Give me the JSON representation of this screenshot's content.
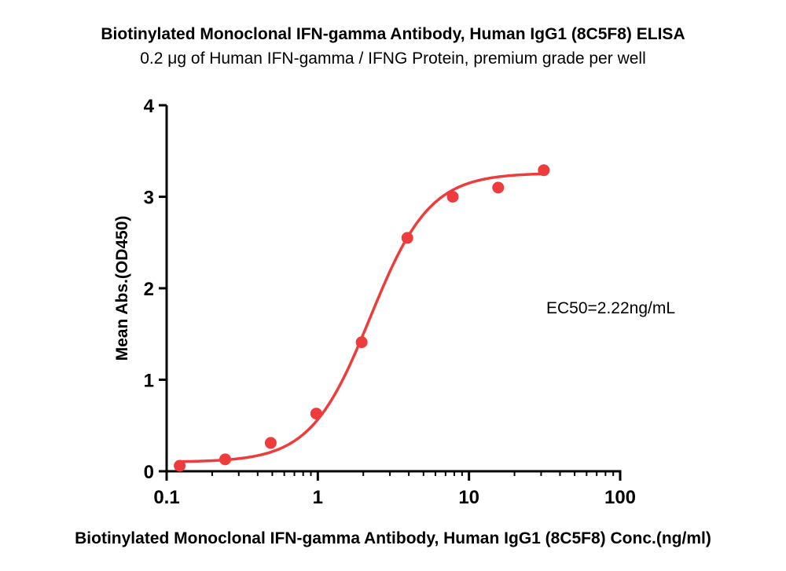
{
  "chart_data": {
    "type": "scatter",
    "title": "Biotinylated Monoclonal IFN-gamma Antibody, Human IgG1 (8C5F8) ELISA",
    "subtitle": "0.2 μg  of Human IFN-gamma / IFNG Protein, premium grade per well",
    "xlabel": "Biotinylated Monoclonal IFN-gamma Antibody, Human IgG1 (8C5F8) Conc.(ng/ml)",
    "ylabel": "Mean Abs.(OD450)",
    "x_scale": "log",
    "xlim": [
      0.1,
      100
    ],
    "ylim": [
      0,
      4
    ],
    "x_ticks": [
      "0.1",
      "1",
      "10",
      "100"
    ],
    "y_ticks": [
      "0",
      "1",
      "2",
      "3",
      "4"
    ],
    "grid": false,
    "annotation": "EC50=2.22ng/mL",
    "series": [
      {
        "color": "#ee3c3c",
        "points": [
          {
            "x": 0.122,
            "y": 0.06
          },
          {
            "x": 0.244,
            "y": 0.13
          },
          {
            "x": 0.488,
            "y": 0.31
          },
          {
            "x": 0.977,
            "y": 0.63
          },
          {
            "x": 1.95,
            "y": 1.41
          },
          {
            "x": 3.91,
            "y": 2.55
          },
          {
            "x": 7.81,
            "y": 3.0
          },
          {
            "x": 15.6,
            "y": 3.1
          },
          {
            "x": 31.25,
            "y": 3.29
          }
        ],
        "fit": {
          "bottom": 0.1,
          "top": 3.26,
          "ec50": 2.22,
          "hill": 2.2
        }
      }
    ]
  }
}
